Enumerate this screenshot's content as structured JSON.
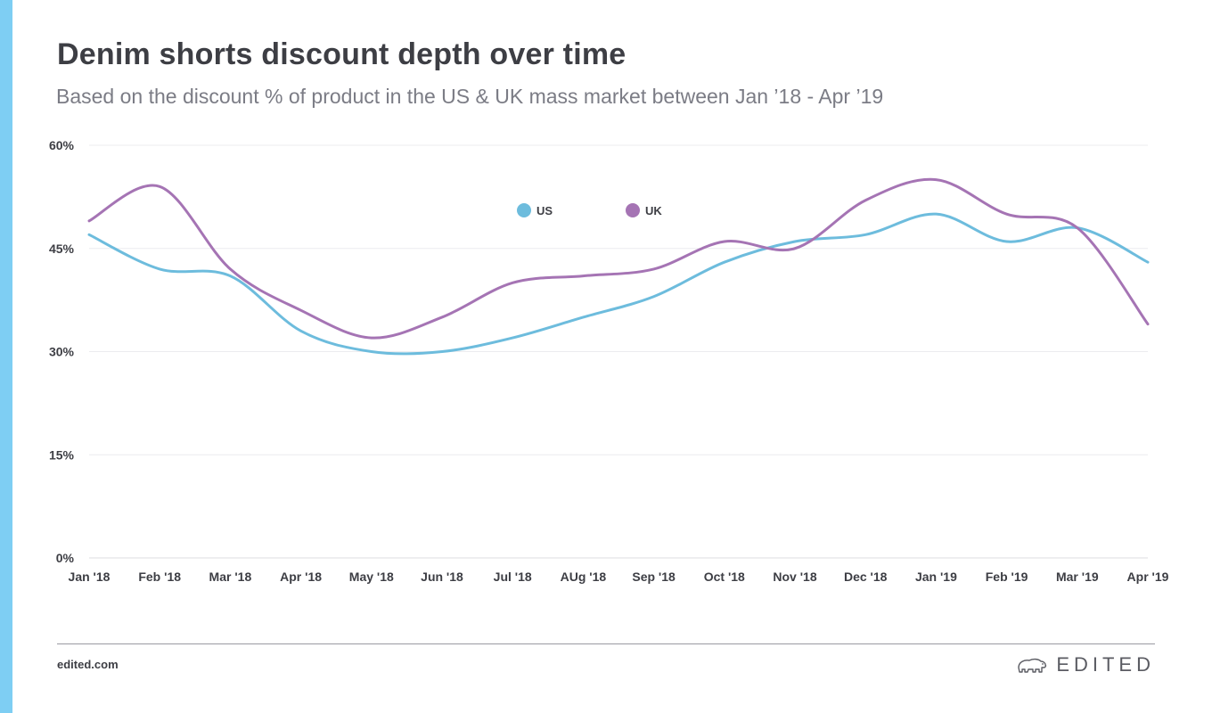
{
  "header": {
    "title": "Denim shorts discount depth over time",
    "subtitle": "Based on the discount % of product in the US & UK mass market between Jan ’18 - Apr ’19"
  },
  "footer": {
    "url": "edited.com",
    "brand": "EDITED"
  },
  "icons": {
    "brand_logo": "polar-bear-icon"
  },
  "colors": {
    "accent_bar": "#7ecef3",
    "US": "#6dbcdd",
    "UK": "#a574b4"
  },
  "chart_data": {
    "type": "line",
    "title": "Denim shorts discount depth over time",
    "subtitle": "Based on the discount % of product in the US & UK mass market between Jan ’18 - Apr ’19",
    "xlabel": "",
    "ylabel": "",
    "categories": [
      "Jan '18",
      "Feb '18",
      "Mar '18",
      "Apr '18",
      "May '18",
      "Jun '18",
      "Jul '18",
      "AUg '18",
      "Sep '18",
      "Oct '18",
      "Nov '18",
      "Dec '18",
      "Jan '19",
      "Feb '19",
      "Mar '19",
      "Apr '19"
    ],
    "yticks": [
      "0%",
      "15%",
      "30%",
      "45%",
      "60%"
    ],
    "ylim": [
      0,
      60
    ],
    "grid": true,
    "legend_position": "top-center",
    "series": [
      {
        "name": "US",
        "color": "#6dbcdd",
        "values": [
          47,
          42,
          41,
          33,
          30,
          30,
          32,
          35,
          38,
          43,
          46,
          47,
          50,
          46,
          48,
          43
        ]
      },
      {
        "name": "UK",
        "color": "#a574b4",
        "values": [
          49,
          54,
          42,
          36,
          32,
          35,
          40,
          41,
          42,
          46,
          45,
          52,
          55,
          50,
          48,
          34
        ]
      }
    ]
  }
}
